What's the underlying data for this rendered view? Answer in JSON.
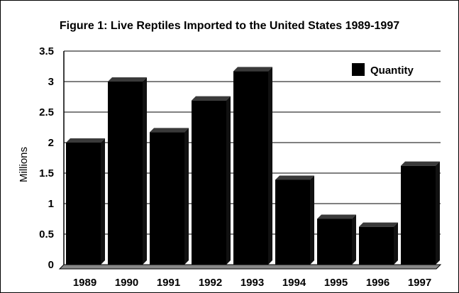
{
  "chart_data": {
    "type": "bar",
    "title": "Figure 1: Live Reptiles Imported to the United States 1989-1997",
    "xlabel": "",
    "ylabel": "Millions",
    "categories": [
      "1989",
      "1990",
      "1991",
      "1992",
      "1993",
      "1994",
      "1995",
      "1996",
      "1997"
    ],
    "series": [
      {
        "name": "Quantity",
        "values": [
          2.0,
          3.0,
          2.17,
          2.69,
          3.17,
          1.39,
          0.75,
          0.62,
          1.62
        ]
      }
    ],
    "ylim": [
      0,
      3.5
    ],
    "yticks": [
      "0",
      "0.5",
      "1",
      "1.5",
      "2",
      "2.5",
      "3",
      "3.5"
    ],
    "grid": true,
    "legend": "top-right",
    "colors": {
      "bar": "#000000",
      "bar_top": "#3a3a3a",
      "axis": "#000000",
      "grid": "#000000",
      "floor": "#888888"
    }
  }
}
